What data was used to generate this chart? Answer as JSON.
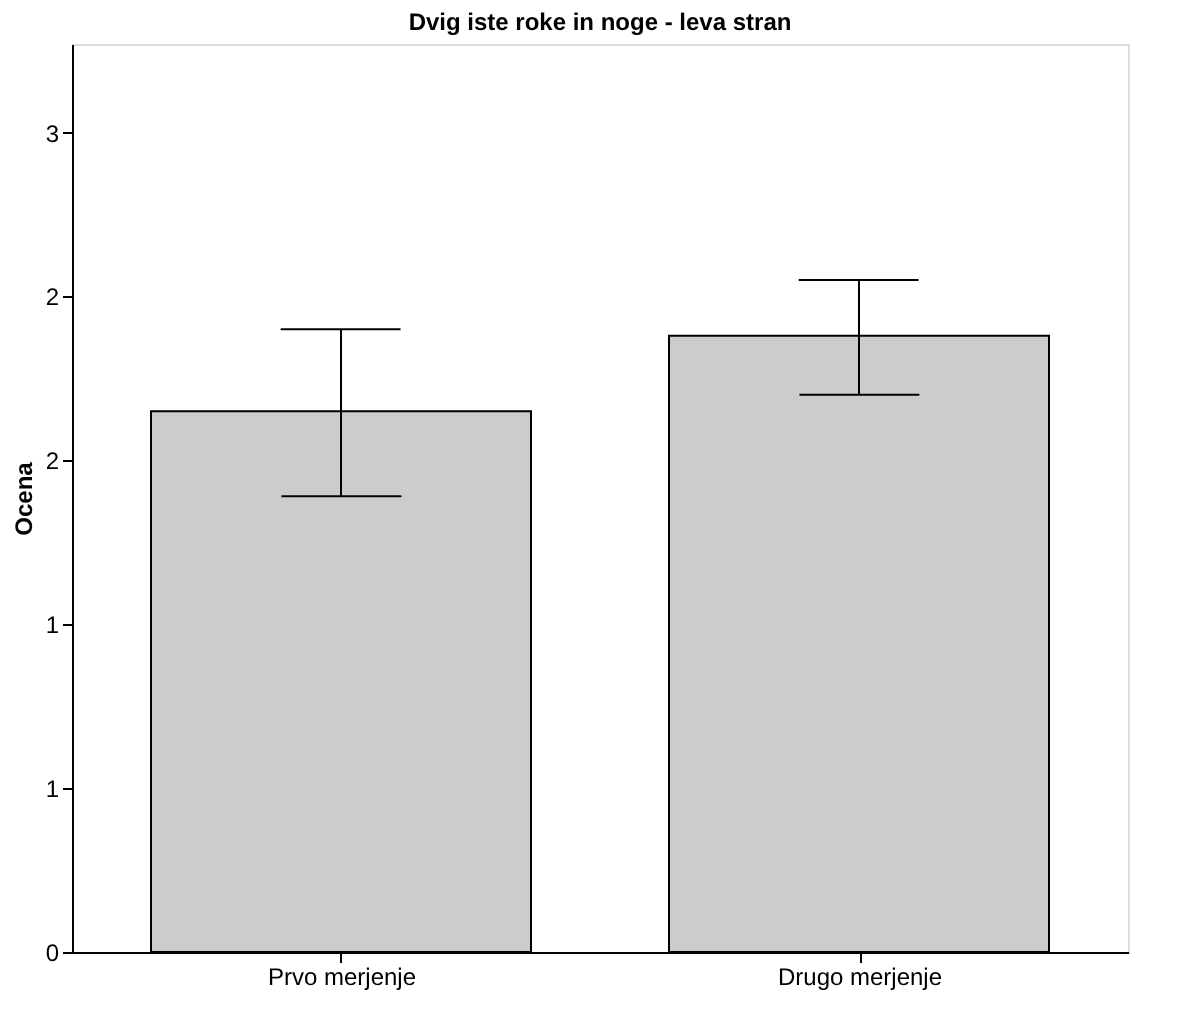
{
  "chart_data": {
    "type": "bar",
    "title": "Dvig iste roke in noge - leva stran",
    "ylabel": "Ocena",
    "categories": [
      "Prvo merjenje",
      "Drugo merjenje"
    ],
    "values": [
      1.65,
      1.88
    ],
    "color": "#cccccc",
    "errors": [
      [
        1.39,
        1.9
      ],
      [
        1.7,
        2.05
      ]
    ],
    "ylim": [
      0,
      2.77
    ],
    "yticks": [
      0,
      {
        "value": 0.5,
        "label": "1"
      },
      1,
      {
        "value": 1.5,
        "label": "2"
      },
      2,
      {
        "value": 2.5,
        "label": "3"
      }
    ],
    "grid": false
  }
}
